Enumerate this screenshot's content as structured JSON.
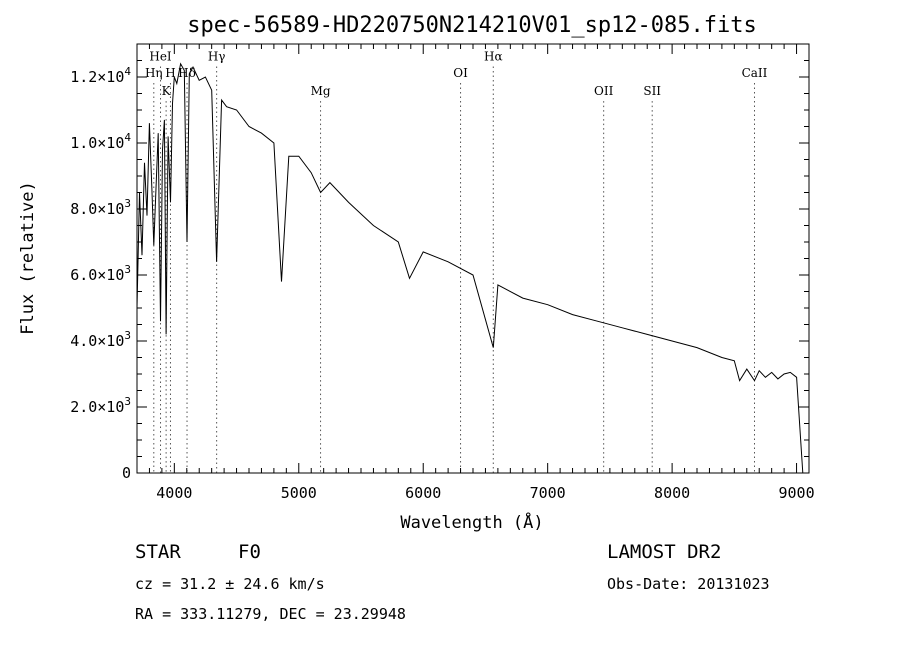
{
  "chart_data": {
    "type": "line",
    "title": "spec-56589-HD220750N214210V01_sp12-085.fits",
    "xlabel": "Wavelength (Å)",
    "ylabel": "Flux (relative)",
    "xlim": [
      3700,
      9100
    ],
    "ylim": [
      0,
      13000
    ],
    "x_ticks": [
      4000,
      5000,
      6000,
      7000,
      8000,
      9000
    ],
    "x_tick_labels": [
      "4000",
      "5000",
      "6000",
      "7000",
      "8000",
      "9000"
    ],
    "y_ticks": [
      0,
      2000,
      4000,
      6000,
      8000,
      10000,
      12000
    ],
    "y_tick_labels": [
      {
        "base": "0",
        "exp": ""
      },
      {
        "base": "2.0×10",
        "exp": "3"
      },
      {
        "base": "4.0×10",
        "exp": "3"
      },
      {
        "base": "6.0×10",
        "exp": "3"
      },
      {
        "base": "8.0×10",
        "exp": "3"
      },
      {
        "base": "1.0×10",
        "exp": "4"
      },
      {
        "base": "1.2×10",
        "exp": "4"
      }
    ],
    "grid": false,
    "lines": [
      {
        "label": "Hη",
        "wavelength": 3835,
        "label_flux": 12000
      },
      {
        "label": "HeI",
        "wavelength": 3889,
        "label_flux": 12500
      },
      {
        "label": "K",
        "wavelength": 3934,
        "label_flux": 11450
      },
      {
        "label": "H",
        "wavelength": 3969,
        "label_flux": 12000
      },
      {
        "label": "Hδ",
        "wavelength": 4102,
        "label_flux": 12000
      },
      {
        "label": "Hγ",
        "wavelength": 4340,
        "label_flux": 12500
      },
      {
        "label": "Mg",
        "wavelength": 5175,
        "label_flux": 11450
      },
      {
        "label": "OI",
        "wavelength": 6300,
        "label_flux": 12000
      },
      {
        "label": "Hα",
        "wavelength": 6563,
        "label_flux": 12500
      },
      {
        "label": "OII",
        "wavelength": 7450,
        "label_flux": 11450
      },
      {
        "label": "SII",
        "wavelength": 7840,
        "label_flux": 11450
      },
      {
        "label": "CaII",
        "wavelength": 8662,
        "label_flux": 12000
      }
    ],
    "series": [
      {
        "x": [
          3700,
          3720,
          3740,
          3760,
          3780,
          3800,
          3820,
          3835,
          3850,
          3870,
          3889,
          3905,
          3920,
          3934,
          3950,
          3969,
          3985,
          4000,
          4020,
          4050,
          4080,
          4102,
          4120,
          4150,
          4200,
          4250,
          4300,
          4340,
          4380,
          4420,
          4500,
          4600,
          4700,
          4800,
          4861,
          4920,
          5000,
          5100,
          5175,
          5250,
          5400,
          5600,
          5800,
          5890,
          6000,
          6200,
          6400,
          6563,
          6600,
          6800,
          7000,
          7200,
          7400,
          7600,
          7800,
          8000,
          8200,
          8400,
          8500,
          8542,
          8600,
          8662,
          8700,
          8750,
          8800,
          8850,
          8900,
          8950,
          9000,
          9050
        ],
        "y": [
          5000,
          8500,
          6600,
          9400,
          7800,
          10600,
          8600,
          6900,
          8400,
          10300,
          4600,
          9800,
          10700,
          4200,
          10200,
          8200,
          11200,
          12000,
          11800,
          12400,
          12200,
          7000,
          12100,
          12300,
          11900,
          12000,
          11600,
          6400,
          11300,
          11100,
          11000,
          10500,
          10300,
          10000,
          5800,
          9600,
          9600,
          9100,
          8500,
          8800,
          8200,
          7500,
          7000,
          5900,
          6700,
          6400,
          6000,
          3800,
          5700,
          5300,
          5100,
          4800,
          4600,
          4400,
          4200,
          4000,
          3800,
          3500,
          3400,
          2800,
          3150,
          2800,
          3100,
          2900,
          3050,
          2850,
          3000,
          3050,
          2900,
          0
        ]
      }
    ]
  },
  "info": {
    "object_type": "STAR",
    "subclass": "F0",
    "survey": "LAMOST DR2",
    "cz": "cz = 31.2 ± 24.6 km/s",
    "obs_date": "Obs-Date: 20131023",
    "coords": "RA = 333.11279, DEC =  23.29948"
  }
}
